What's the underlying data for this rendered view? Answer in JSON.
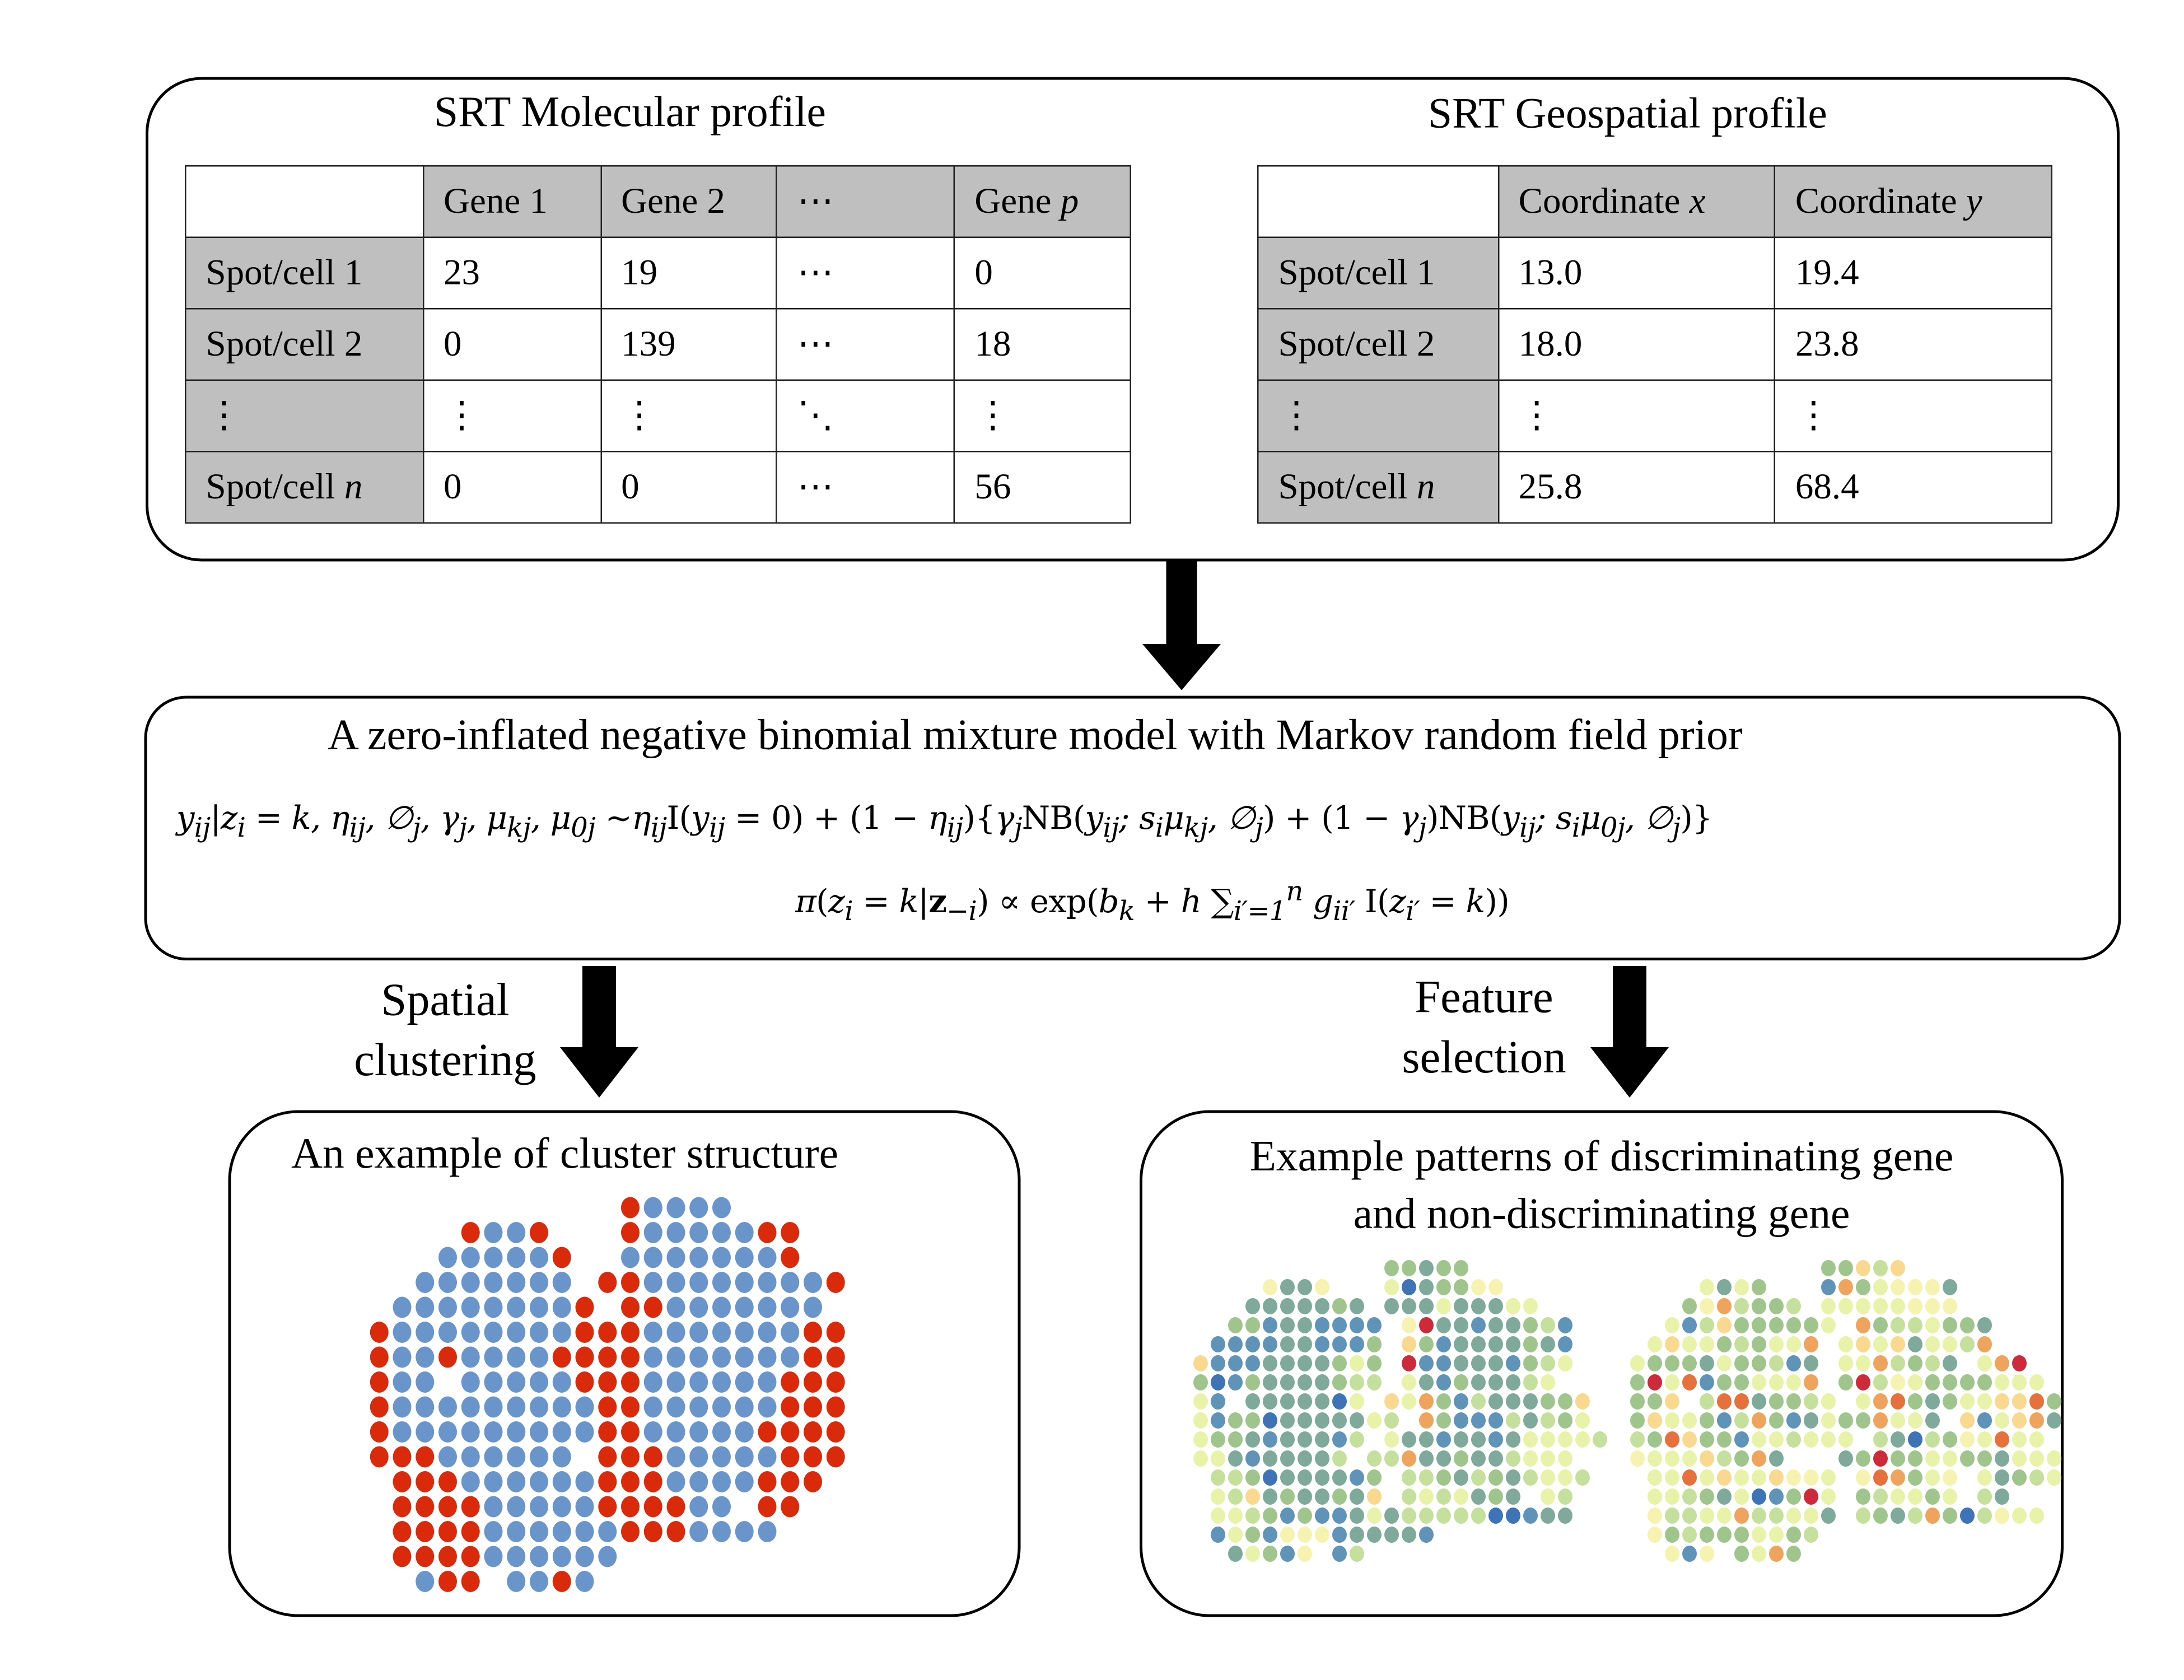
{
  "top_panel": {
    "molecular_title": "SRT Molecular profile",
    "geospatial_title": "SRT Geospatial profile",
    "molecular_table": {
      "columns": [
        "",
        "Gene 1",
        "Gene 2",
        "⋯",
        "Gene p"
      ],
      "rows": [
        [
          "Spot/cell 1",
          "23",
          "19",
          "⋯",
          "0"
        ],
        [
          "Spot/cell 2",
          "0",
          "139",
          "⋯",
          "18"
        ],
        [
          "⋮",
          "⋮",
          "⋮",
          "⋱",
          "⋮"
        ],
        [
          "Spot/cell n",
          "0",
          "0",
          "⋯",
          "56"
        ]
      ]
    },
    "geospatial_table": {
      "columns": [
        "",
        "Coordinate x",
        "Coordinate y"
      ],
      "rows": [
        [
          "Spot/cell 1",
          "13.0",
          "19.4"
        ],
        [
          "Spot/cell 2",
          "18.0",
          "23.8"
        ],
        [
          "⋮",
          "⋮",
          "⋮"
        ],
        [
          "Spot/cell n",
          "25.8",
          "68.4"
        ]
      ]
    }
  },
  "model_panel": {
    "title": "A zero-inflated negative binomial mixture model with Markov random field prior",
    "equation_1": "y_ij | z_i = k, η_ij, ∅_j, γ_j, μ_kj, μ_0j ~ η_ij I(y_ij = 0) + (1 − η_ij){γ_j NB(y_ij; s_i μ_kj, ∅_j) + (1 − γ_j) NB(y_ij; s_i μ_0j, ∅_j)}",
    "equation_2": "π(z_i = k | z_−i) ∝ exp(b_k + h Σ_{i'=1}^{n} g_ii' I(z_i' = k))"
  },
  "branches": {
    "left_label_line1": "Spatial",
    "left_label_line2": "clustering",
    "right_label_line1": "Feature",
    "right_label_line2": "selection"
  },
  "cluster_panel": {
    "title": "An example of cluster structure",
    "colors": {
      "R": "#d92b0c",
      "B": "#6a95cb"
    },
    "grid": [
      "............RBBBB.....",
      ".....RBBR...RBBBBBRR..",
      "....BBBBBR..BBBBBBBR..",
      "...BBBBBBB.RRBBBBBBBBR",
      "..BBBBBBBBR.RRBBBBBBB.",
      ".RBBBBBBBBRRRBBBBBBBRR",
      ".RBBRBBBBRRRRBBBBBBBRR",
      ".RBB.BBBBBRRRBBBBBBRRR",
      ".RBBBBBBBBBRRBBBBBBRRR",
      ".RBBBBBBBBBRRBBBBBRRRR",
      ".RRRBBBBBB.RRRBBBBBRRR",
      "..RRRBBBBBBRRRBBBBRRR.",
      "..RRRRBBBBBRRRRBB.RR..",
      "..RRRRBBBBBBRRRBBBB...",
      "..RRRRBBBBBB..........",
      "...BRR.BBRB..........."
    ]
  },
  "feature_panel": {
    "title_line1": "Example patterns of discriminating gene",
    "title_line2": "and non-discriminating gene",
    "palette": {
      "1": "#3e74b6",
      "2": "#5f93b8",
      "3": "#7fa99b",
      "4": "#9fc58d",
      "5": "#c5e09c",
      "6": "#e8f2a8",
      "7": "#f6f3b0",
      "8": "#f9d98f",
      "9": "#eea45d",
      "a": "#e5713d",
      "b": "#cc2b3a"
    },
    "discriminating_grid": [
      "............44344.....",
      ".....7337...6134477...",
      "....3333343.333633366.",
      "...442332222.7b33233452",
      "..2222332224.8423333432",
      ".82223333464.b223332456",
      ".41243333455.632433356",
      ".62.3333316.869425333448",
      ".624413333365.9422253546",
      ".6443233325.6332332366665",
      ".663233335.559334335666",
      "..5541333324.55435435665",
      "..6583433438.5656343.65",
      "..665424223635555511233",
      "..2642777233332..........",
      "...36427.25..........."
    ],
    "non_discriminating_grid": [
      "............44858.....",
      ".....6364...29467773..",
      "....4795445.66666777..",
      "...6258444446.94556443..",
      "..6866454669.686836659",
      ".64443644523.6695453.69b",
      ".4b6a2446669.4b5764444666",
      ".448.5aa34456.69a4346688a4",
      ".486642594236449663.826893",
      ".54a8442665666.5315476a66",
      ".766685493...34b4466443666",
      "..66a68668776.7a9467.63456",
      "..665436124b6.456646.53",
      "..75566955663.54359415766",
      "..7454446645...........",
      "...727.4694..........."
    ]
  }
}
